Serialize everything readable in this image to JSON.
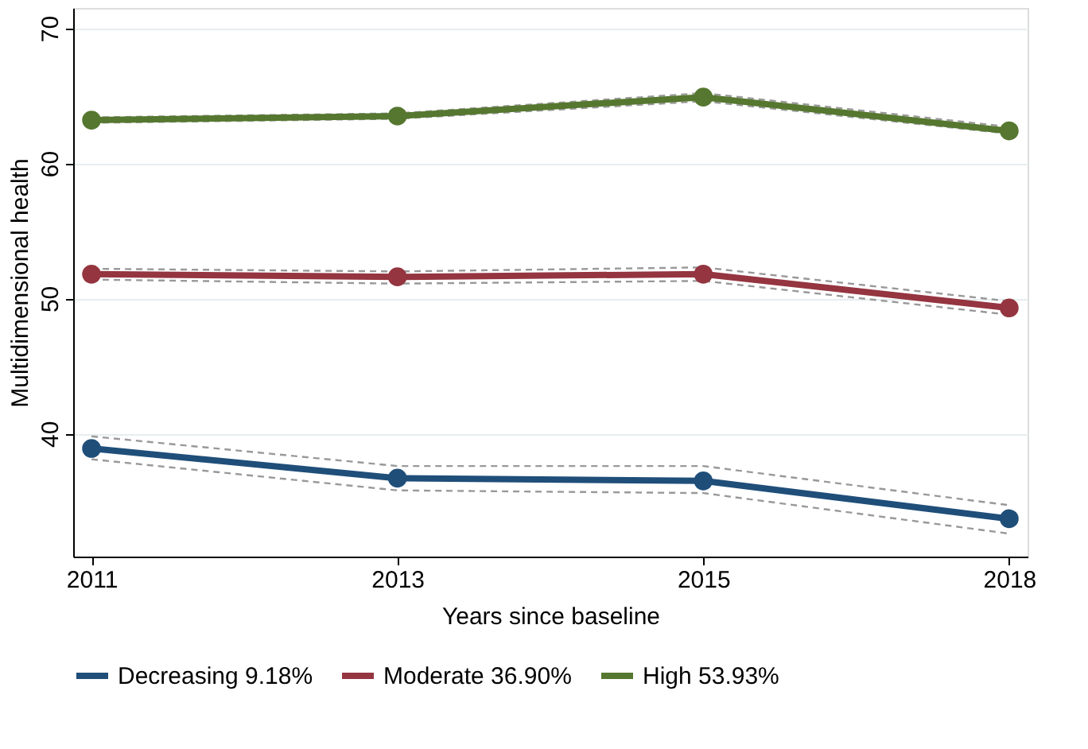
{
  "chart_data": {
    "type": "line",
    "xlabel": "Years since baseline",
    "ylabel": "Multidimensional health",
    "categories": [
      "2011",
      "2013",
      "2015",
      "2018"
    ],
    "series": [
      {
        "name": "Decreasing 9.18%",
        "color": "#1f4e79",
        "values": [
          38.9,
          36.7,
          36.5,
          33.7
        ]
      },
      {
        "name": "Moderate 36.90%",
        "color": "#943540",
        "values": [
          51.8,
          51.6,
          51.8,
          49.3
        ]
      },
      {
        "name": "High  53.93%",
        "color": "#55772f",
        "values": [
          63.2,
          63.5,
          64.9,
          62.4
        ]
      },
      {
        "color": "#999999",
        "values": [
          38.1,
          35.8,
          35.6,
          32.6
        ],
        "line_style": "dashed",
        "marker": "none"
      },
      {
        "color": "#999999",
        "values": [
          39.8,
          37.6,
          37.6,
          34.7
        ],
        "line_style": "dashed",
        "marker": "none"
      },
      {
        "color": "#999999",
        "values": [
          51.4,
          51.1,
          51.3,
          48.8
        ],
        "line_style": "dashed",
        "marker": "none"
      },
      {
        "color": "#999999",
        "values": [
          52.2,
          52.0,
          52.3,
          49.8
        ],
        "line_style": "dashed",
        "marker": "none"
      },
      {
        "color": "#999999",
        "values": [
          63.0,
          63.3,
          64.6,
          62.2
        ],
        "line_style": "dashed",
        "marker": "none"
      },
      {
        "color": "#999999",
        "values": [
          63.4,
          63.7,
          65.2,
          62.7
        ],
        "line_style": "dashed",
        "marker": "none"
      }
    ],
    "ylim": [
      30.9,
      71.5
    ],
    "yticks": [
      40,
      50,
      60,
      70
    ],
    "grid": "y",
    "legend": "bottom",
    "marker": "circle",
    "line_style": "solid"
  }
}
